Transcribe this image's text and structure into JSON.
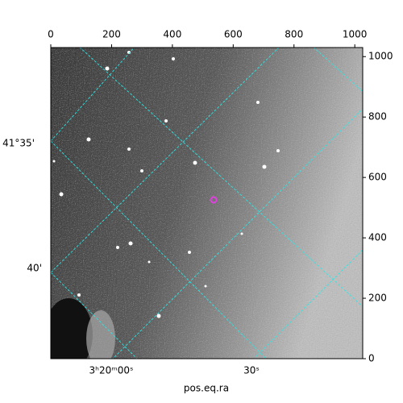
{
  "chart_data": {
    "type": "image",
    "x_axis_label": "pos.eq.ra",
    "ra_tick_labels": [
      "3ʰ20ᵐ00ˢ",
      "30ˢ"
    ],
    "dec_tick_labels": [
      "41°35'",
      "40'"
    ],
    "xlim": [
      0,
      1026
    ],
    "xticks": [
      0,
      200,
      400,
      600,
      800,
      1000
    ],
    "ylim": [
      0,
      1030
    ],
    "yticks": [
      0,
      200,
      400,
      600,
      800,
      1000
    ]
  }
}
